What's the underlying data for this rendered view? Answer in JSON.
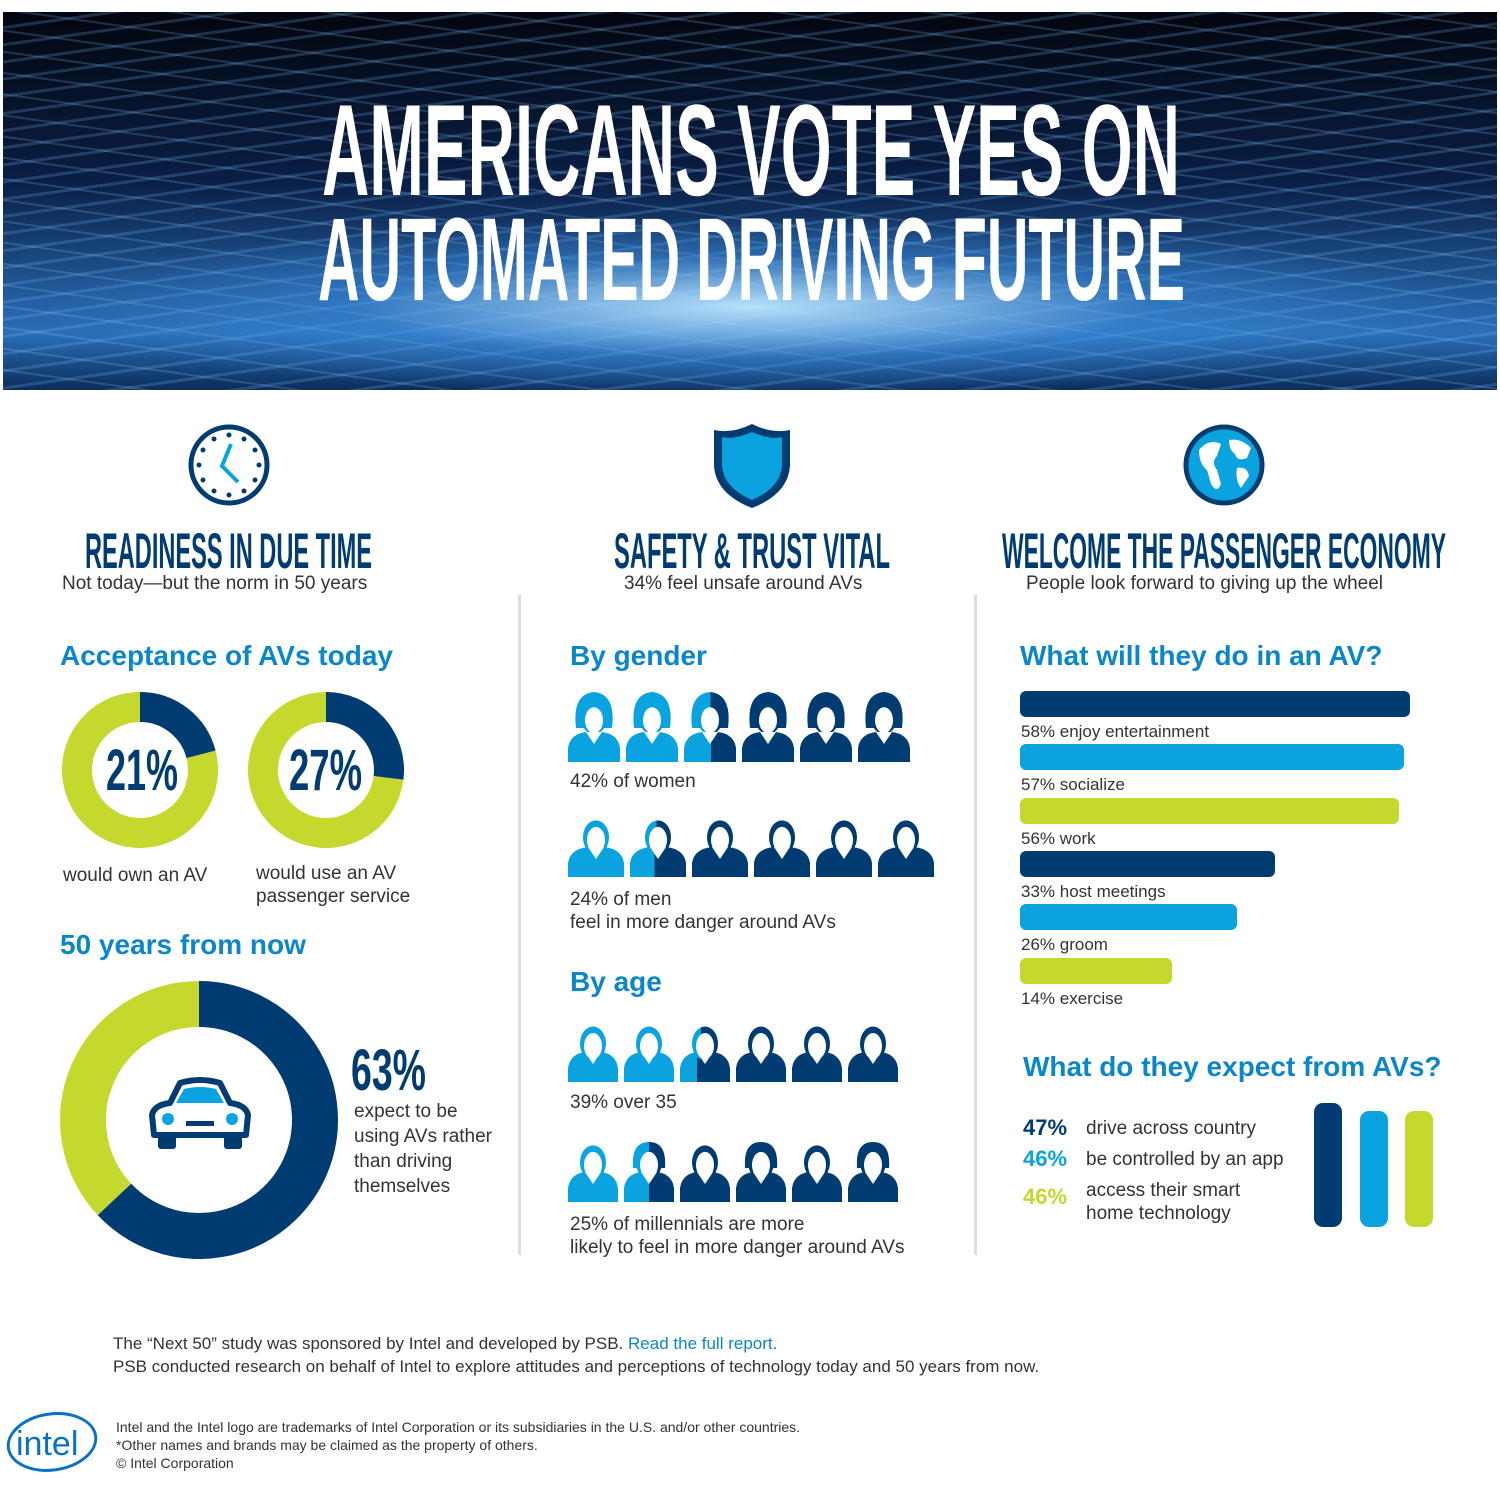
{
  "title": {
    "line1": "AMERICANS VOTE YES ON",
    "line2": "AUTOMATED DRIVING FUTURE"
  },
  "colors": {
    "navy": "#003c71",
    "blue": "#0aa3e0",
    "lime": "#c4d82e",
    "heading_blue": "#0a86c9"
  },
  "sections": [
    {
      "icon": "clock-icon",
      "title": "READINESS IN DUE TIME",
      "subtitle": "Not today—but the norm in 50 years"
    },
    {
      "icon": "shield-icon",
      "title": "SAFETY & TRUST VITAL",
      "subtitle": "34% feel unsafe around AVs"
    },
    {
      "icon": "globe-icon",
      "title": "WELCOME THE PASSENGER ECONOMY",
      "subtitle": "People look forward to giving up the wheel"
    }
  ],
  "readiness": {
    "acceptance_heading": "Acceptance of AVs today",
    "own_label": "would own an AV",
    "use_label_1": "would use an AV",
    "use_label_2": "passenger service",
    "future_heading": "50 years from now",
    "future_label": [
      "expect to be",
      "using AVs rather",
      "than driving",
      "themselves"
    ]
  },
  "safety": {
    "gender_heading": "By gender",
    "women_label": "42% of women",
    "men_label_1": "24% of men",
    "men_label_2": "feel in more danger around AVs",
    "age_heading": "By age",
    "over35_label": "39% over 35",
    "millennials_label_1": "25% of millennials are more",
    "millennials_label_2": "likely to feel in more danger around AVs"
  },
  "economy": {
    "activities_heading": "What will they do in an AV?",
    "expect_heading": "What do they expect from AVs?"
  },
  "chart_data": [
    {
      "type": "pie",
      "subtype": "donut",
      "values": [
        21,
        79
      ],
      "label": "21%",
      "caption": "would own an AV"
    },
    {
      "type": "pie",
      "subtype": "donut",
      "values": [
        27,
        73
      ],
      "label": "27%",
      "caption": "would use an AV passenger service"
    },
    {
      "type": "pie",
      "subtype": "donut",
      "values": [
        63,
        37
      ],
      "label": "63%",
      "caption": "expect to be using AVs rather than driving themselves",
      "icon": "car-icon"
    },
    {
      "type": "pictogram",
      "categories": [
        "women",
        "men",
        "over 35",
        "millennials"
      ],
      "values": [
        42,
        24,
        39,
        25
      ],
      "icons_per_row": 6
    },
    {
      "type": "bar",
      "orientation": "horizontal",
      "categories": [
        "58% enjoy entertainment",
        "57% socialize",
        "56% work",
        "33% host meetings",
        "26% groom",
        "14% exercise"
      ],
      "values": [
        58,
        57,
        56,
        33,
        26,
        14
      ],
      "colors": [
        "#003c71",
        "#0aa3e0",
        "#c4d82e",
        "#003c71",
        "#0aa3e0",
        "#c4d82e"
      ]
    },
    {
      "type": "bar",
      "orientation": "vertical",
      "categories": [
        "drive across country",
        "be controlled by an app",
        "access their smart home technology"
      ],
      "labels": [
        "47%",
        "46%",
        "46%"
      ],
      "values": [
        47,
        46,
        46
      ],
      "colors": [
        "#003c71",
        "#0aa3e0",
        "#c4d82e"
      ]
    }
  ],
  "footer": {
    "line1": "The “Next 50” study was sponsored by Intel and developed by PSB.",
    "link": "Read the full report.",
    "line2": "PSB conducted research on behalf of Intel to explore attitudes and perceptions of technology today and 50 years from now.",
    "legal1": "Intel and the Intel logo are trademarks of Intel Corporation or its subsidiaries in the U.S. and/or other countries.",
    "legal2": "*Other names and brands may be claimed as the property of others.",
    "legal3": "© Intel Corporation",
    "logo": "intel"
  }
}
